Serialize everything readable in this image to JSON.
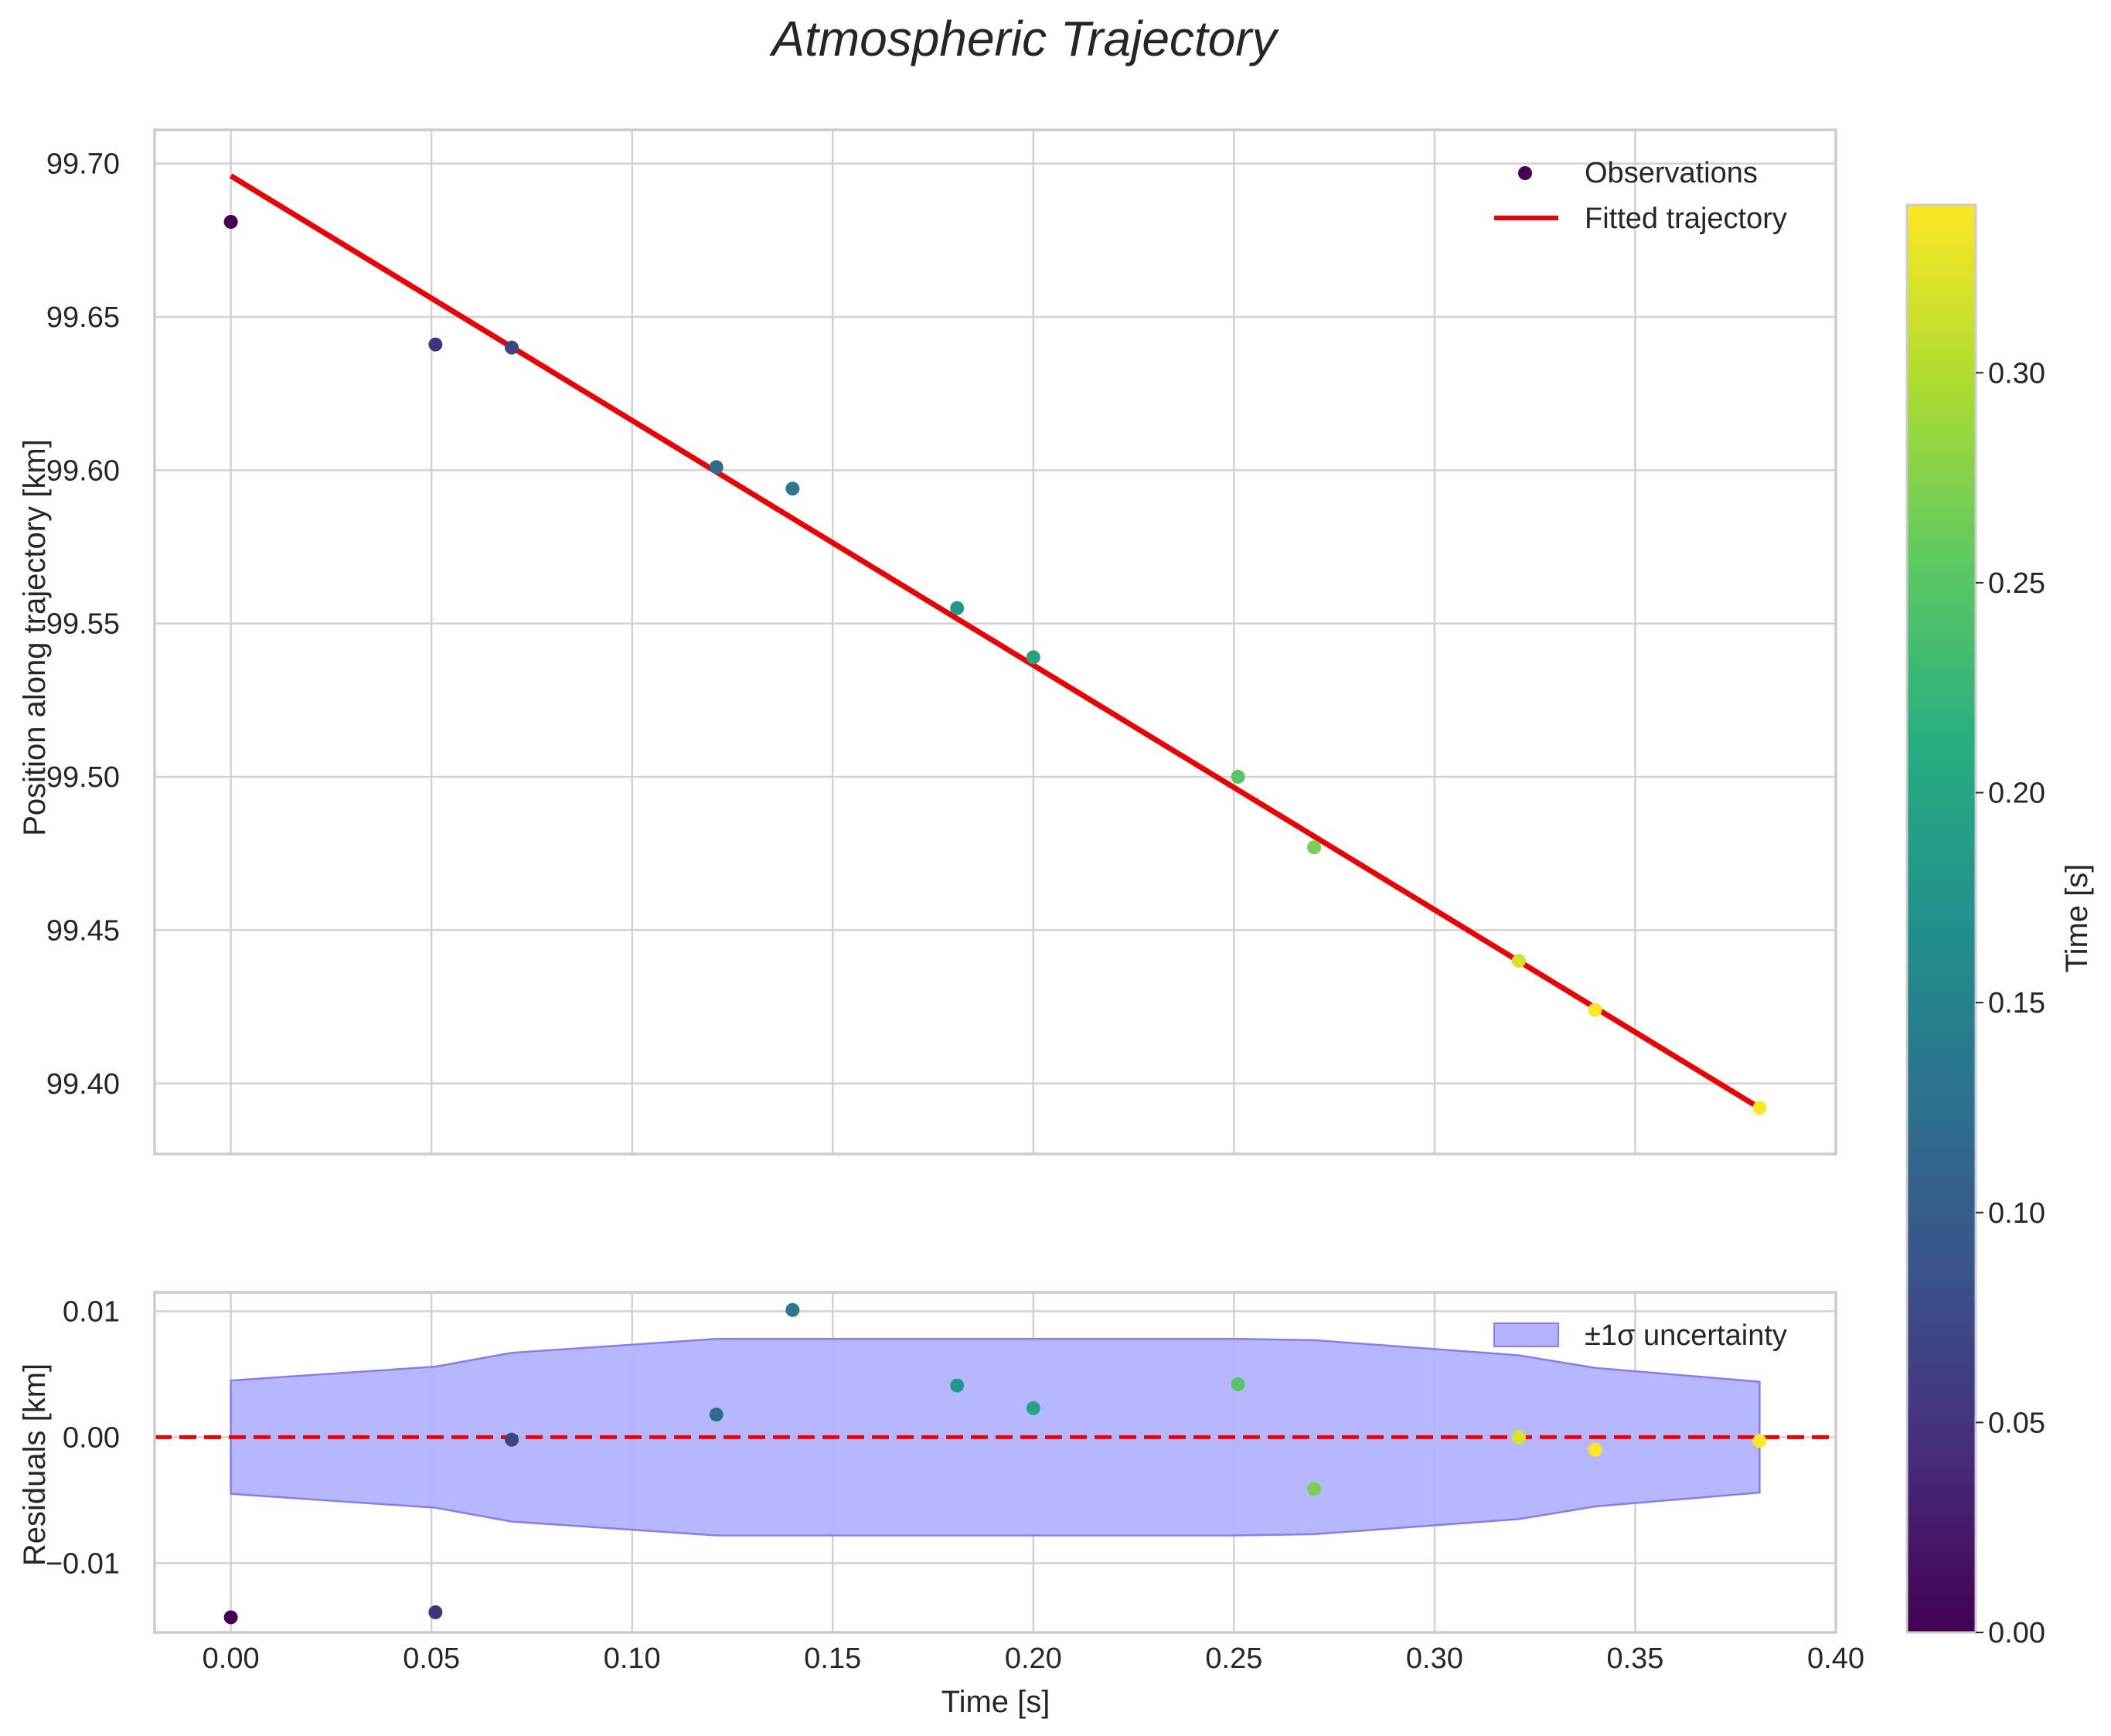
{
  "chart_data": {
    "type": "scatter",
    "title": "Atmospheric Trajectory",
    "colormap": "viridis",
    "colors": {
      "fit_line": "#ee0000",
      "band_fill": "#b3b3ff",
      "band_edge": "#8080ee",
      "zero_line": "#ee0000",
      "grid": "#d2d2d2",
      "frame": "#cccccc"
    },
    "top_panel": {
      "ylabel": "Position along trajectory [km]",
      "ylim": [
        99.377,
        99.711
      ],
      "yticks": [
        99.4,
        99.45,
        99.5,
        99.55,
        99.6,
        99.65,
        99.7
      ],
      "ytick_labels": [
        "99.40",
        "99.45",
        "99.50",
        "99.55",
        "99.60",
        "99.65",
        "99.70"
      ],
      "observations": {
        "name": "Observations",
        "t": [
          0.0,
          0.051,
          0.07,
          0.121,
          0.14,
          0.181,
          0.2,
          0.251,
          0.27,
          0.321,
          0.34,
          0.381
        ],
        "position": [
          99.681,
          99.641,
          99.64,
          99.601,
          99.594,
          99.555,
          99.539,
          99.5,
          99.477,
          99.44,
          99.424,
          99.392
        ]
      },
      "fit": {
        "name": "Fitted trajectory",
        "t": [
          0.0,
          0.381
        ],
        "position": [
          99.696,
          99.392
        ]
      },
      "legend": [
        "Observations",
        "Fitted trajectory"
      ]
    },
    "bottom_panel": {
      "ylabel": "Residuals [km]",
      "ylim": [
        -0.0155,
        0.0115
      ],
      "yticks": [
        -0.01,
        0.0,
        0.01
      ],
      "ytick_labels": [
        "−0.01",
        "0.00",
        "0.01"
      ],
      "residuals": [
        -0.0143,
        -0.0139,
        -0.0002,
        0.0018,
        0.0101,
        0.0041,
        0.0023,
        0.0042,
        -0.0041,
        0.0,
        -0.001,
        -0.0003
      ],
      "sigma": [
        0.0045,
        0.0056,
        0.0067,
        0.0078,
        0.0078,
        0.0078,
        0.0078,
        0.0078,
        0.0077,
        0.0065,
        0.0055,
        0.0044
      ],
      "band_label": "±1σ uncertainty",
      "zero_line": 0.0
    },
    "xaxis": {
      "label": "Time [s]",
      "xlim": [
        -0.019,
        0.4
      ],
      "ticks": [
        0.0,
        0.05,
        0.1,
        0.15,
        0.2,
        0.25,
        0.3,
        0.35,
        0.4
      ],
      "tick_labels": [
        "0.00",
        "0.05",
        "0.10",
        "0.15",
        "0.20",
        "0.25",
        "0.30",
        "0.35",
        "0.40"
      ]
    },
    "colorbar": {
      "label": "Time [s]",
      "range": [
        0.0,
        0.34
      ],
      "ticks": [
        0.0,
        0.05,
        0.1,
        0.15,
        0.2,
        0.25,
        0.3
      ],
      "tick_labels": [
        "0.00",
        "0.05",
        "0.10",
        "0.15",
        "0.20",
        "0.25",
        "0.30"
      ]
    }
  }
}
